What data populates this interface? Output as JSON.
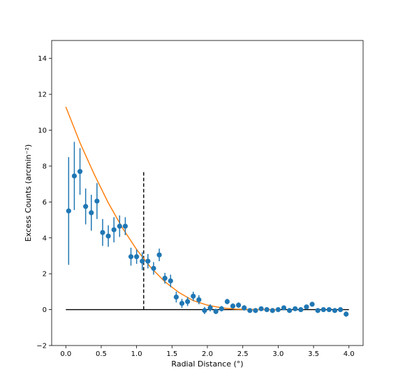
{
  "chart_data": {
    "type": "scatter",
    "xlabel": "Radial Distance (°)",
    "ylabel": "Excess Counts (arcmin⁻²)",
    "xlim": [
      -0.2,
      4.2
    ],
    "ylim": [
      -2,
      15
    ],
    "xticks": [
      0.0,
      0.5,
      1.0,
      1.5,
      2.0,
      2.5,
      3.0,
      3.5,
      4.0
    ],
    "xtick_labels": [
      "0.0",
      "0.5",
      "1.0",
      "1.5",
      "2.0",
      "2.5",
      "3.0",
      "3.5",
      "4.0"
    ],
    "yticks": [
      -2,
      0,
      2,
      4,
      6,
      8,
      10,
      12,
      14
    ],
    "ytick_labels": [
      "−2",
      "0",
      "2",
      "4",
      "6",
      "8",
      "10",
      "12",
      "14"
    ],
    "grid": false,
    "legend": false,
    "points": [
      {
        "x": 0.04,
        "y": 5.5,
        "err": 3.0
      },
      {
        "x": 0.12,
        "y": 7.45,
        "err": 1.9
      },
      {
        "x": 0.2,
        "y": 7.7,
        "err": 1.3
      },
      {
        "x": 0.28,
        "y": 5.75,
        "err": 1.0
      },
      {
        "x": 0.36,
        "y": 5.4,
        "err": 1.0
      },
      {
        "x": 0.44,
        "y": 6.05,
        "err": 1.0
      },
      {
        "x": 0.52,
        "y": 4.3,
        "err": 0.75
      },
      {
        "x": 0.6,
        "y": 4.1,
        "err": 0.6
      },
      {
        "x": 0.68,
        "y": 4.45,
        "err": 0.7
      },
      {
        "x": 0.76,
        "y": 4.65,
        "err": 0.6
      },
      {
        "x": 0.84,
        "y": 4.65,
        "err": 0.5
      },
      {
        "x": 0.92,
        "y": 2.95,
        "err": 0.5
      },
      {
        "x": 1.0,
        "y": 2.95,
        "err": 0.4
      },
      {
        "x": 1.08,
        "y": 2.7,
        "err": 0.5
      },
      {
        "x": 1.16,
        "y": 2.7,
        "err": 0.4
      },
      {
        "x": 1.24,
        "y": 2.3,
        "err": 0.35
      },
      {
        "x": 1.32,
        "y": 3.05,
        "err": 0.35
      },
      {
        "x": 1.4,
        "y": 1.75,
        "err": 0.3
      },
      {
        "x": 1.48,
        "y": 1.6,
        "err": 0.35
      },
      {
        "x": 1.56,
        "y": 0.7,
        "err": 0.3
      },
      {
        "x": 1.64,
        "y": 0.35,
        "err": 0.25
      },
      {
        "x": 1.72,
        "y": 0.45,
        "err": 0.25
      },
      {
        "x": 1.8,
        "y": 0.75,
        "err": 0.25
      },
      {
        "x": 1.88,
        "y": 0.55,
        "err": 0.25
      },
      {
        "x": 1.96,
        "y": -0.05,
        "err": 0.2
      },
      {
        "x": 2.04,
        "y": 0.1,
        "err": 0.2
      },
      {
        "x": 2.12,
        "y": -0.1,
        "err": 0.15
      },
      {
        "x": 2.2,
        "y": 0.05,
        "err": 0.15
      },
      {
        "x": 2.28,
        "y": 0.45,
        "err": 0.15
      },
      {
        "x": 2.36,
        "y": 0.2,
        "err": 0.15
      },
      {
        "x": 2.44,
        "y": 0.25,
        "err": 0.15
      },
      {
        "x": 2.52,
        "y": 0.1,
        "err": 0.15
      },
      {
        "x": 2.6,
        "y": -0.05,
        "err": 0.1
      },
      {
        "x": 2.68,
        "y": -0.05,
        "err": 0.1
      },
      {
        "x": 2.76,
        "y": 0.05,
        "err": 0.1
      },
      {
        "x": 2.84,
        "y": 0.0,
        "err": 0.1
      },
      {
        "x": 2.92,
        "y": -0.05,
        "err": 0.1
      },
      {
        "x": 3.0,
        "y": 0.0,
        "err": 0.1
      },
      {
        "x": 3.08,
        "y": 0.1,
        "err": 0.1
      },
      {
        "x": 3.16,
        "y": -0.05,
        "err": 0.1
      },
      {
        "x": 3.24,
        "y": 0.05,
        "err": 0.1
      },
      {
        "x": 3.32,
        "y": 0.0,
        "err": 0.1
      },
      {
        "x": 3.4,
        "y": 0.15,
        "err": 0.1
      },
      {
        "x": 3.48,
        "y": 0.3,
        "err": 0.1
      },
      {
        "x": 3.56,
        "y": -0.05,
        "err": 0.1
      },
      {
        "x": 3.64,
        "y": 0.0,
        "err": 0.1
      },
      {
        "x": 3.72,
        "y": 0.0,
        "err": 0.1
      },
      {
        "x": 3.8,
        "y": -0.05,
        "err": 0.1
      },
      {
        "x": 3.88,
        "y": 0.0,
        "err": 0.1
      },
      {
        "x": 3.96,
        "y": -0.25,
        "err": 0.15
      }
    ],
    "fit_curve": {
      "x": [
        0.0,
        0.2,
        0.4,
        0.6,
        0.8,
        1.0,
        1.2,
        1.4,
        1.6,
        1.8,
        2.0,
        2.2,
        2.4,
        2.6,
        2.8,
        3.0
      ],
      "y": [
        11.3,
        9.3,
        7.55,
        5.95,
        4.55,
        3.35,
        2.35,
        1.55,
        0.95,
        0.5,
        0.25,
        0.1,
        0.03,
        0.01,
        0.0,
        0.0
      ]
    },
    "reference_lines": {
      "zero_line": {
        "y": 0,
        "x_start": 0.0,
        "x_end": 4.0
      },
      "vertical_dashed": {
        "x": 1.1,
        "y_start": 0,
        "y_end": 7.7
      }
    },
    "colors": {
      "points": "#1f77b4",
      "fit": "#ff7f0e",
      "reference": "#000000"
    }
  }
}
